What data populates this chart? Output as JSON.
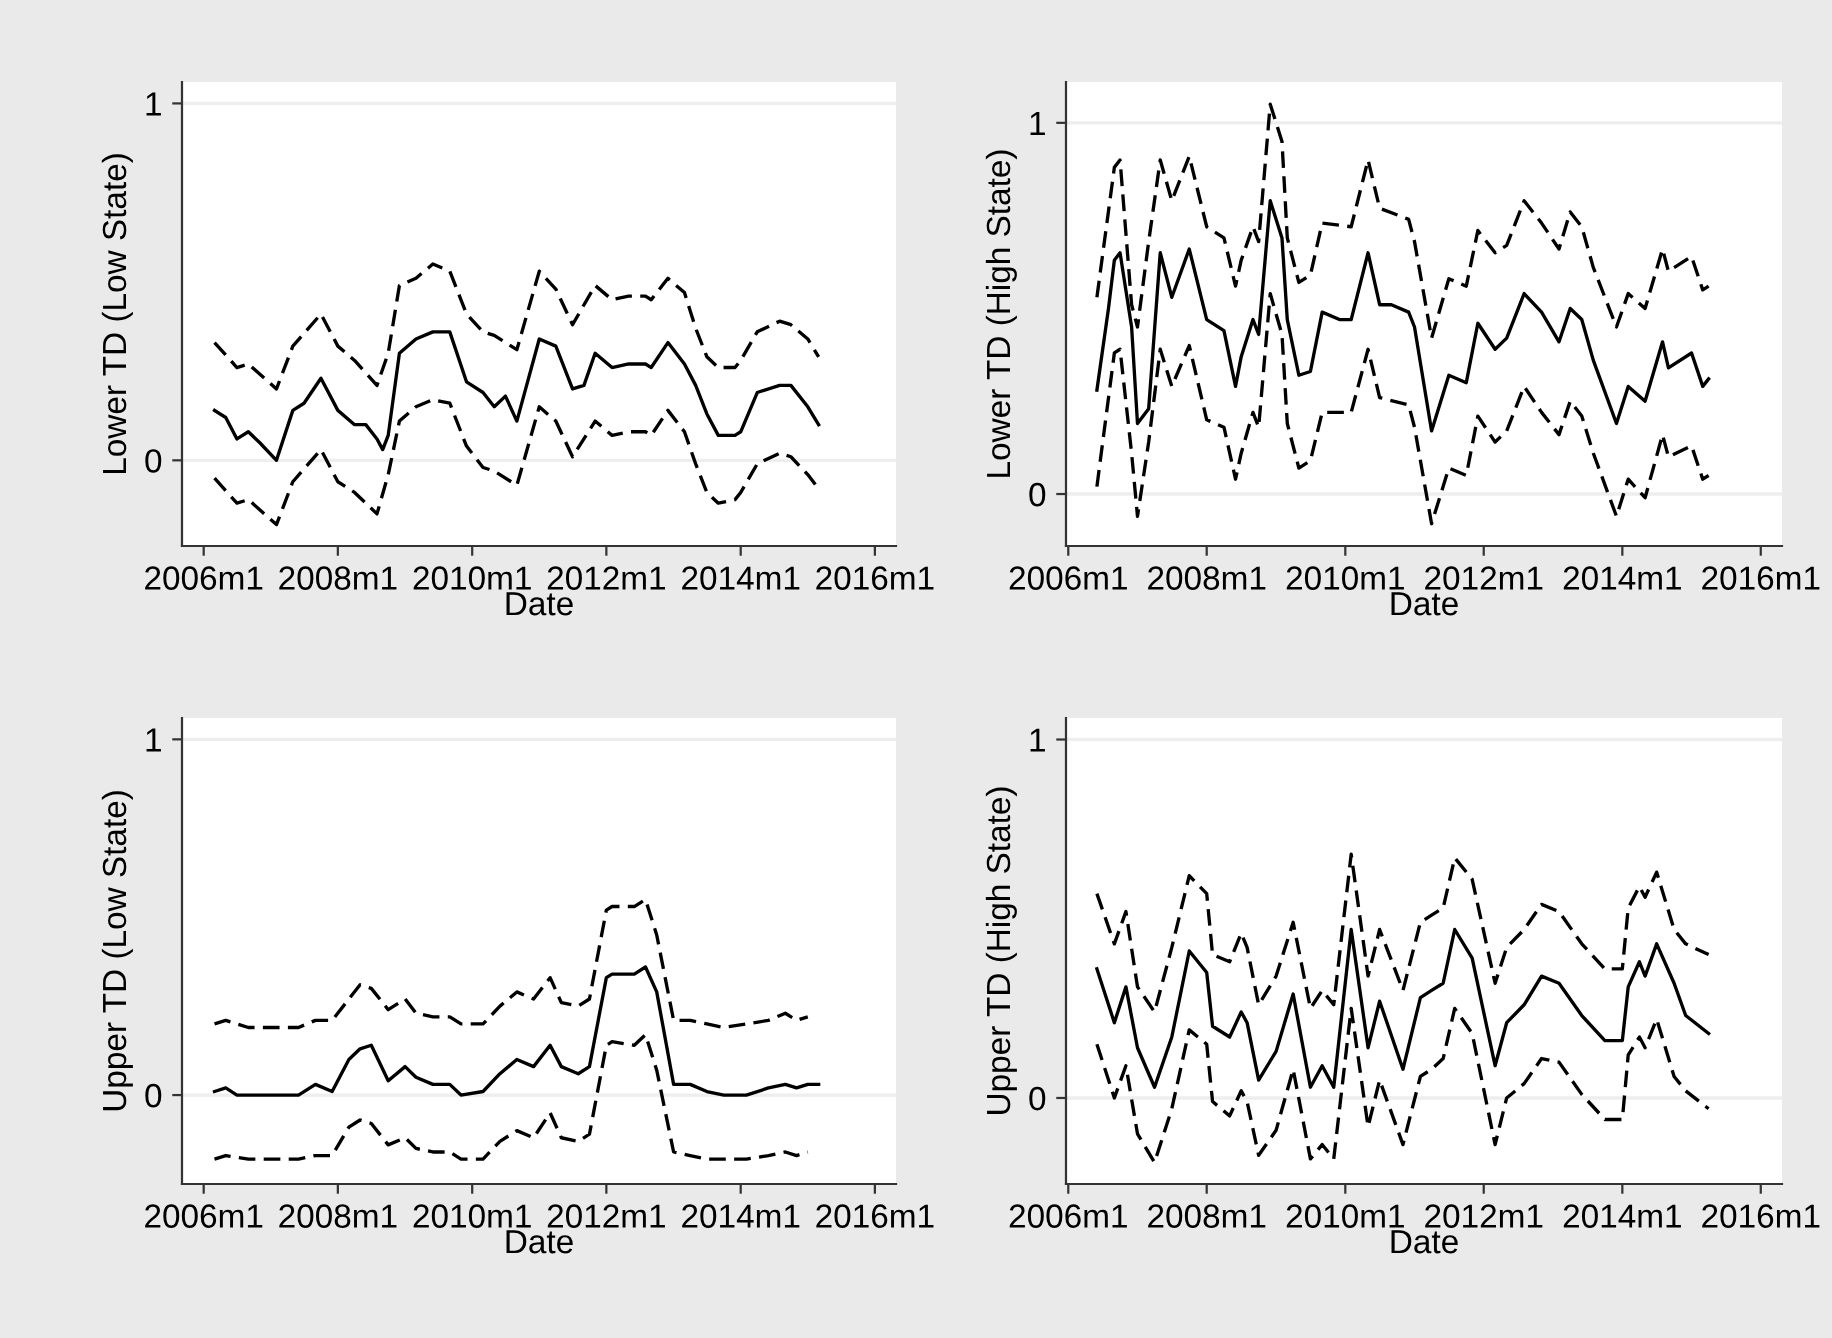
{
  "chart_data": [
    {
      "type": "line",
      "ylabel": "Lower TD (Low State)",
      "xlabel": "Date",
      "xlim": [
        "2005-09-05",
        "2016-04-25"
      ],
      "ylim": [
        -0.24,
        1.06
      ],
      "yticks": [
        0,
        1
      ],
      "grid": "y",
      "xticks": [
        {
          "value": "2006-01",
          "label": "2006m1"
        },
        {
          "value": "2008-01",
          "label": "2008m1"
        },
        {
          "value": "2010-01",
          "label": "2010m1"
        },
        {
          "value": "2012-01",
          "label": "2012m1"
        },
        {
          "value": "2014-01",
          "label": "2014m1"
        },
        {
          "value": "2016-01",
          "label": "2016m1"
        }
      ],
      "x": [
        "2006-03",
        "2006-07",
        "2006-09",
        "2007-02",
        "2007-05",
        "2007-10",
        "2008-01",
        "2008-04",
        "2008-08",
        "2008-10",
        "2008-12",
        "2009-03",
        "2009-06",
        "2009-09",
        "2009-12",
        "2010-03",
        "2010-05",
        "2010-09",
        "2011-01",
        "2011-04",
        "2011-07",
        "2011-11",
        "2012-02",
        "2012-05",
        "2012-08",
        "2012-09",
        "2012-12",
        "2013-03",
        "2013-05",
        "2013-07",
        "2013-09",
        "2013-12",
        "2014-01",
        "2014-04",
        "2014-08",
        "2014-10",
        "2015-01",
        "2015-03"
      ],
      "series": [
        {
          "color": "#000000",
          "line_style": "solid",
          "x": [
            "2006-03",
            "2006-05",
            "2006-07",
            "2006-09",
            "2006-11",
            "2007-02",
            "2007-05",
            "2007-07",
            "2007-10",
            "2008-01",
            "2008-04",
            "2008-06",
            "2008-08",
            "2008-09",
            "2008-10",
            "2008-12",
            "2009-03",
            "2009-06",
            "2009-09",
            "2009-12",
            "2010-03",
            "2010-05",
            "2010-07",
            "2010-09",
            "2011-01",
            "2011-04",
            "2011-07",
            "2011-09",
            "2011-11",
            "2012-02",
            "2012-05",
            "2012-08",
            "2012-09",
            "2012-12",
            "2013-03",
            "2013-05",
            "2013-07",
            "2013-09",
            "2013-12",
            "2014-01",
            "2014-04",
            "2014-08",
            "2014-10",
            "2015-01",
            "2015-03"
          ],
          "values": [
            0.14,
            0.12,
            0.06,
            0.08,
            0.05,
            0.0,
            0.14,
            0.16,
            0.23,
            0.14,
            0.1,
            0.1,
            0.06,
            0.03,
            0.07,
            0.3,
            0.34,
            0.36,
            0.36,
            0.22,
            0.19,
            0.15,
            0.18,
            0.11,
            0.34,
            0.32,
            0.2,
            0.21,
            0.3,
            0.26,
            0.27,
            0.27,
            0.26,
            0.33,
            0.27,
            0.21,
            0.13,
            0.07,
            0.07,
            0.08,
            0.19,
            0.21,
            0.21,
            0.15,
            0.1
          ]
        },
        {
          "color": "#000000",
          "line_style": "dashed",
          "values": [
            0.33,
            0.26,
            0.27,
            0.2,
            0.32,
            0.41,
            0.32,
            0.28,
            0.21,
            0.3,
            0.49,
            0.51,
            0.55,
            0.53,
            0.41,
            0.36,
            0.35,
            0.31,
            0.53,
            0.48,
            0.38,
            0.49,
            0.45,
            0.46,
            0.46,
            0.45,
            0.51,
            0.47,
            0.37,
            0.29,
            0.26,
            0.26,
            0.28,
            0.36,
            0.39,
            0.38,
            0.34,
            0.29
          ]
        },
        {
          "color": "#000000",
          "line_style": "dashed",
          "values": [
            -0.05,
            -0.12,
            -0.11,
            -0.18,
            -0.06,
            0.03,
            -0.06,
            -0.09,
            -0.15,
            -0.04,
            0.11,
            0.15,
            0.17,
            0.16,
            0.04,
            -0.02,
            -0.03,
            -0.07,
            0.15,
            0.11,
            0.01,
            0.11,
            0.07,
            0.08,
            0.08,
            0.07,
            0.14,
            0.08,
            -0.01,
            -0.09,
            -0.12,
            -0.11,
            -0.09,
            -0.01,
            0.02,
            0.01,
            -0.04,
            -0.08
          ]
        }
      ]
    },
    {
      "type": "line",
      "ylabel": "Lower TD (High State)",
      "xlabel": "Date",
      "xlim": [
        "2005-12-20",
        "2016-04-22"
      ],
      "ylim": [
        -0.14,
        1.11
      ],
      "yticks": [
        0,
        1
      ],
      "grid": "y",
      "xticks": [
        {
          "value": "2006-01",
          "label": "2006m1"
        },
        {
          "value": "2008-01",
          "label": "2008m1"
        },
        {
          "value": "2010-01",
          "label": "2010m1"
        },
        {
          "value": "2012-01",
          "label": "2012m1"
        },
        {
          "value": "2014-01",
          "label": "2014m1"
        },
        {
          "value": "2016-01",
          "label": "2016m1"
        }
      ],
      "x": [
        "2006-06",
        "2006-09",
        "2006-10",
        "2006-12",
        "2007-01",
        "2007-03",
        "2007-05",
        "2007-07",
        "2007-10",
        "2008-01",
        "2008-04",
        "2008-06",
        "2008-07",
        "2008-09",
        "2008-10",
        "2008-12",
        "2009-02",
        "2009-03",
        "2009-05",
        "2009-07",
        "2009-09",
        "2010-02",
        "2010-05",
        "2010-07",
        "2010-12",
        "2011-01",
        "2011-04",
        "2011-07",
        "2011-10",
        "2011-12",
        "2012-03",
        "2012-05",
        "2012-08",
        "2012-11",
        "2013-02",
        "2013-04",
        "2013-06",
        "2013-08",
        "2013-12",
        "2014-02",
        "2014-05",
        "2014-08",
        "2014-09",
        "2015-01",
        "2015-03",
        "2015-04"
      ],
      "series": [
        {
          "color": "#000000",
          "line_style": "solid",
          "x": [
            "2006-06",
            "2006-08",
            "2006-09",
            "2006-10",
            "2006-12",
            "2007-01",
            "2007-03",
            "2007-05",
            "2007-07",
            "2007-10",
            "2008-01",
            "2008-04",
            "2008-06",
            "2008-07",
            "2008-09",
            "2008-10",
            "2008-12",
            "2009-02",
            "2009-03",
            "2009-05",
            "2009-07",
            "2009-09",
            "2009-12",
            "2010-02",
            "2010-05",
            "2010-07",
            "2010-09",
            "2010-12",
            "2011-01",
            "2011-04",
            "2011-07",
            "2011-10",
            "2011-12",
            "2012-03",
            "2012-05",
            "2012-08",
            "2012-11",
            "2013-02",
            "2013-04",
            "2013-06",
            "2013-08",
            "2013-12",
            "2014-02",
            "2014-05",
            "2014-08",
            "2014-09",
            "2015-01",
            "2015-03",
            "2015-04"
          ],
          "values": [
            0.28,
            0.5,
            0.63,
            0.65,
            0.45,
            0.19,
            0.23,
            0.65,
            0.53,
            0.66,
            0.47,
            0.44,
            0.29,
            0.37,
            0.47,
            0.43,
            0.79,
            0.69,
            0.47,
            0.32,
            0.33,
            0.49,
            0.47,
            0.47,
            0.65,
            0.51,
            0.51,
            0.49,
            0.45,
            0.17,
            0.32,
            0.3,
            0.46,
            0.39,
            0.42,
            0.54,
            0.49,
            0.41,
            0.5,
            0.47,
            0.36,
            0.19,
            0.29,
            0.25,
            0.41,
            0.34,
            0.38,
            0.29,
            0.31
          ]
        },
        {
          "color": "#000000",
          "line_style": "dashed",
          "values": [
            0.53,
            0.88,
            0.9,
            0.51,
            0.45,
            0.68,
            0.9,
            0.79,
            0.91,
            0.72,
            0.69,
            0.56,
            0.63,
            0.72,
            0.68,
            1.05,
            0.95,
            0.69,
            0.57,
            0.59,
            0.73,
            0.72,
            0.9,
            0.77,
            0.74,
            0.68,
            0.42,
            0.58,
            0.56,
            0.71,
            0.65,
            0.67,
            0.79,
            0.73,
            0.66,
            0.76,
            0.72,
            0.61,
            0.45,
            0.54,
            0.5,
            0.66,
            0.6,
            0.64,
            0.55,
            0.56
          ]
        },
        {
          "color": "#000000",
          "line_style": "dashed",
          "values": [
            0.02,
            0.38,
            0.39,
            0.11,
            -0.06,
            0.14,
            0.39,
            0.29,
            0.4,
            0.2,
            0.18,
            0.04,
            0.11,
            0.22,
            0.18,
            0.54,
            0.43,
            0.19,
            0.07,
            0.09,
            0.22,
            0.22,
            0.39,
            0.26,
            0.24,
            0.18,
            -0.08,
            0.07,
            0.05,
            0.21,
            0.14,
            0.17,
            0.29,
            0.22,
            0.16,
            0.25,
            0.21,
            0.11,
            -0.06,
            0.04,
            -0.01,
            0.16,
            0.1,
            0.13,
            0.04,
            0.05
          ]
        }
      ]
    },
    {
      "type": "line",
      "ylabel": "Upper TD (Low State)",
      "xlabel": "Date",
      "xlim": [
        "2005-09-05",
        "2016-04-25"
      ],
      "ylim": [
        -0.25,
        1.06
      ],
      "yticks": [
        0,
        1
      ],
      "grid": "y",
      "xticks": [
        {
          "value": "2006-01",
          "label": "2006m1"
        },
        {
          "value": "2008-01",
          "label": "2008m1"
        },
        {
          "value": "2010-01",
          "label": "2010m1"
        },
        {
          "value": "2012-01",
          "label": "2012m1"
        },
        {
          "value": "2014-01",
          "label": "2014m1"
        },
        {
          "value": "2016-01",
          "label": "2016m1"
        }
      ],
      "x": [
        "2006-03",
        "2006-05",
        "2006-09",
        "2007-06",
        "2007-09",
        "2007-12",
        "2008-03",
        "2008-05",
        "2008-07",
        "2008-10",
        "2009-01",
        "2009-03",
        "2009-06",
        "2009-09",
        "2009-11",
        "2010-03",
        "2010-06",
        "2010-09",
        "2010-12",
        "2011-03",
        "2011-05",
        "2011-08",
        "2011-10",
        "2012-01",
        "2012-02",
        "2012-06",
        "2012-08",
        "2012-10",
        "2013-01",
        "2013-04",
        "2013-07",
        "2013-10",
        "2014-02",
        "2014-06",
        "2014-09",
        "2014-11",
        "2015-01"
      ],
      "series": [
        {
          "color": "#000000",
          "line_style": "solid",
          "x": [
            "2006-03",
            "2006-05",
            "2006-07",
            "2006-10",
            "2007-06",
            "2007-09",
            "2007-12",
            "2008-03",
            "2008-05",
            "2008-07",
            "2008-10",
            "2009-01",
            "2009-03",
            "2009-06",
            "2009-09",
            "2009-11",
            "2010-03",
            "2010-06",
            "2010-09",
            "2010-12",
            "2011-03",
            "2011-05",
            "2011-08",
            "2011-10",
            "2012-01",
            "2012-02",
            "2012-06",
            "2012-08",
            "2012-10",
            "2013-01",
            "2013-04",
            "2013-07",
            "2013-10",
            "2014-02",
            "2014-06",
            "2014-09",
            "2014-11",
            "2015-01",
            "2015-03"
          ],
          "values": [
            0.01,
            0.02,
            0.0,
            0.0,
            0.0,
            0.03,
            0.01,
            0.1,
            0.13,
            0.14,
            0.04,
            0.08,
            0.05,
            0.03,
            0.03,
            0.0,
            0.01,
            0.06,
            0.1,
            0.08,
            0.14,
            0.08,
            0.06,
            0.08,
            0.33,
            0.34,
            0.34,
            0.36,
            0.29,
            0.03,
            0.03,
            0.01,
            0.0,
            0.0,
            0.02,
            0.03,
            0.02,
            0.03,
            0.03
          ]
        },
        {
          "color": "#000000",
          "line_style": "dashed",
          "values": [
            0.2,
            0.21,
            0.19,
            0.19,
            0.21,
            0.21,
            0.27,
            0.31,
            0.3,
            0.24,
            0.27,
            0.23,
            0.22,
            0.22,
            0.2,
            0.2,
            0.25,
            0.29,
            0.27,
            0.33,
            0.26,
            0.25,
            0.27,
            0.52,
            0.53,
            0.53,
            0.55,
            0.45,
            0.21,
            0.21,
            0.2,
            0.19,
            0.2,
            0.21,
            0.23,
            0.21,
            0.22
          ]
        },
        {
          "color": "#000000",
          "line_style": "dashed",
          "values": [
            -0.18,
            -0.17,
            -0.18,
            -0.18,
            -0.17,
            -0.17,
            -0.09,
            -0.07,
            -0.08,
            -0.14,
            -0.12,
            -0.15,
            -0.16,
            -0.16,
            -0.18,
            -0.18,
            -0.13,
            -0.1,
            -0.12,
            -0.05,
            -0.12,
            -0.13,
            -0.11,
            0.14,
            0.15,
            0.14,
            0.17,
            0.07,
            -0.16,
            -0.17,
            -0.18,
            -0.18,
            -0.18,
            -0.17,
            -0.16,
            -0.17,
            -0.16
          ]
        }
      ]
    },
    {
      "type": "line",
      "ylabel": "Upper TD (High State)",
      "xlabel": "Date",
      "xlim": [
        "2005-12-20",
        "2016-04-22"
      ],
      "ylim": [
        -0.24,
        1.06
      ],
      "yticks": [
        0,
        1
      ],
      "grid": "y",
      "xticks": [
        {
          "value": "2006-01",
          "label": "2006m1"
        },
        {
          "value": "2008-01",
          "label": "2008m1"
        },
        {
          "value": "2010-01",
          "label": "2010m1"
        },
        {
          "value": "2012-01",
          "label": "2012m1"
        },
        {
          "value": "2014-01",
          "label": "2014m1"
        },
        {
          "value": "2016-01",
          "label": "2016m1"
        }
      ],
      "x": [
        "2006-06",
        "2006-09",
        "2006-11",
        "2007-01",
        "2007-04",
        "2007-07",
        "2007-10",
        "2008-01",
        "2008-02",
        "2008-05",
        "2008-07",
        "2008-08",
        "2008-10",
        "2009-01",
        "2009-04",
        "2009-07",
        "2009-09",
        "2009-11",
        "2010-02",
        "2010-05",
        "2010-07",
        "2010-11",
        "2011-02",
        "2011-04",
        "2011-06",
        "2011-08",
        "2011-11",
        "2012-03",
        "2012-05",
        "2012-08",
        "2012-11",
        "2013-02",
        "2013-06",
        "2013-10",
        "2014-01",
        "2014-02",
        "2014-04",
        "2014-05",
        "2014-07",
        "2014-10",
        "2014-12",
        "2015-04"
      ],
      "series": [
        {
          "color": "#000000",
          "line_style": "solid",
          "values": [
            0.36,
            0.21,
            0.31,
            0.14,
            0.03,
            0.17,
            0.41,
            0.35,
            0.2,
            0.17,
            0.24,
            0.21,
            0.05,
            0.13,
            0.29,
            0.03,
            0.09,
            0.03,
            0.47,
            0.14,
            0.27,
            0.08,
            0.28,
            0.3,
            0.32,
            0.47,
            0.39,
            0.09,
            0.21,
            0.26,
            0.34,
            0.32,
            0.23,
            0.16,
            0.16,
            0.31,
            0.38,
            0.34,
            0.43,
            0.32,
            0.23,
            0.18
          ]
        },
        {
          "color": "#000000",
          "line_style": "dashed",
          "values": [
            0.57,
            0.43,
            0.52,
            0.31,
            0.24,
            0.42,
            0.62,
            0.57,
            0.4,
            0.38,
            0.46,
            0.42,
            0.26,
            0.34,
            0.49,
            0.25,
            0.3,
            0.26,
            0.68,
            0.34,
            0.47,
            0.3,
            0.49,
            0.51,
            0.53,
            0.67,
            0.61,
            0.32,
            0.42,
            0.47,
            0.54,
            0.52,
            0.43,
            0.36,
            0.36,
            0.53,
            0.59,
            0.56,
            0.63,
            0.47,
            0.43,
            0.4
          ]
        },
        {
          "color": "#000000",
          "line_style": "dashed",
          "values": [
            0.15,
            0.0,
            0.09,
            -0.1,
            -0.18,
            -0.03,
            0.19,
            0.15,
            -0.01,
            -0.05,
            0.02,
            -0.01,
            -0.16,
            -0.09,
            0.08,
            -0.17,
            -0.13,
            -0.17,
            0.25,
            -0.08,
            0.05,
            -0.13,
            0.06,
            0.08,
            0.11,
            0.25,
            0.18,
            -0.13,
            0.0,
            0.04,
            0.11,
            0.1,
            0.01,
            -0.06,
            -0.06,
            0.12,
            0.17,
            0.14,
            0.22,
            0.06,
            0.02,
            -0.03
          ]
        }
      ]
    }
  ]
}
